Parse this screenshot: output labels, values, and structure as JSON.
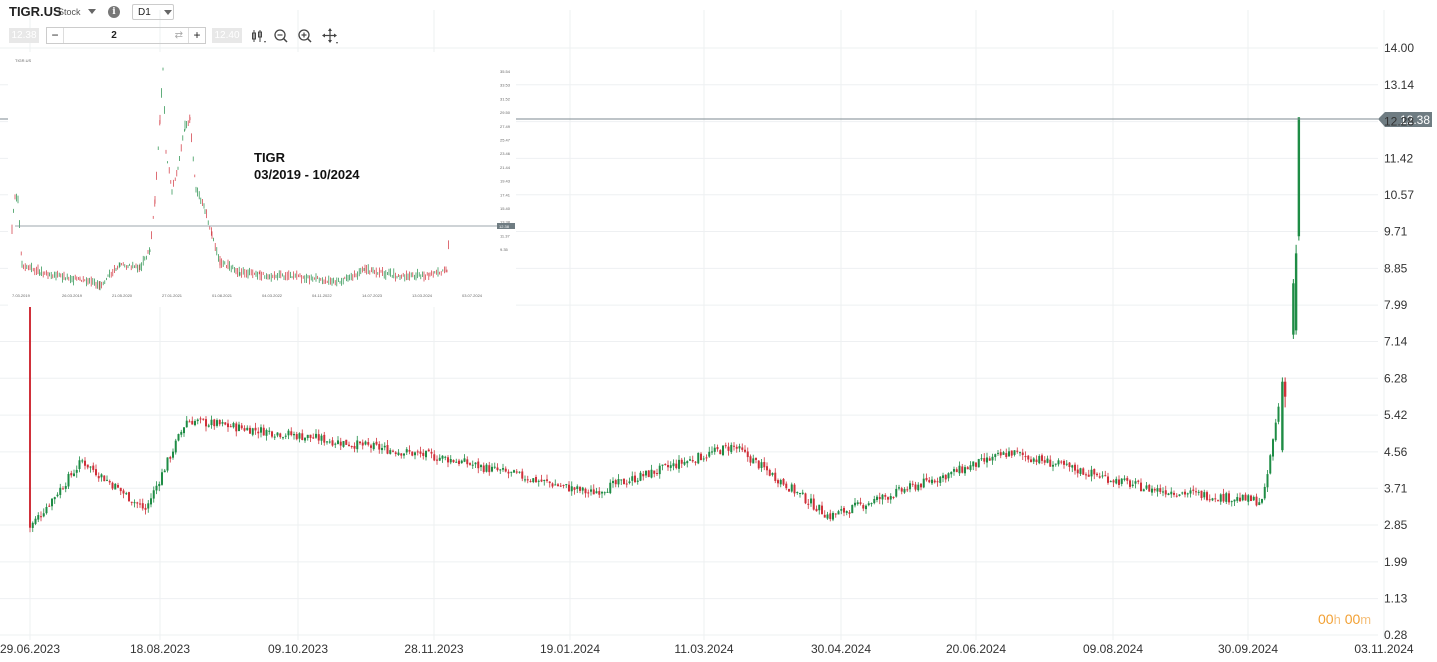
{
  "toolbar": {
    "symbol": "TIGR.US",
    "type": "Stock",
    "timeframe": "D1",
    "bid": "12.38",
    "ask": "12.40",
    "volume": "2",
    "minus": "−",
    "plus": "+",
    "swap": "⇄",
    "info": "i",
    "tools": [
      "candles-icon",
      "zoom-out-icon",
      "zoom-in-icon",
      "crosshair-icon"
    ]
  },
  "countdown": {
    "hours": "00",
    "h": "h",
    "minutes": "00",
    "m": "m"
  },
  "inset": {
    "title": "TIGR",
    "period": "03/2019 - 10/2024",
    "header": "TIGR.US",
    "x_labels": [
      "7.03.2019",
      "26.03.2019",
      "21.05.2020",
      "27.01.2021",
      "01.08.2021",
      "04.03.2022",
      "04.11.2022",
      "14.07.2023",
      "13.03.2024",
      "03.07.2024"
    ],
    "y_labels": [
      "35.54",
      "33.53",
      "31.52",
      "29.50",
      "27.49",
      "25.47",
      "23.46",
      "21.44",
      "19.43",
      "17.41",
      "15.40",
      "13.38",
      "11.37",
      "9.35"
    ],
    "price_label": "12.38"
  },
  "chart_data": {
    "type": "candlestick",
    "y_ticks": [
      14.0,
      13.14,
      12.28,
      11.42,
      10.57,
      9.71,
      8.85,
      7.99,
      7.14,
      6.28,
      5.42,
      4.56,
      3.71,
      2.85,
      1.99,
      1.13,
      0.28
    ],
    "y_labels": [
      "14.00",
      "13.14",
      "12.28",
      "11.42",
      "10.57",
      "9.71",
      "8.85",
      "7.99",
      "7.14",
      "6.28",
      "5.42",
      "4.56",
      "3.71",
      "2.85",
      "1.99",
      "1.13",
      "0.28"
    ],
    "x_labels": [
      "29.06.2023",
      "18.08.2023",
      "09.10.2023",
      "28.11.2023",
      "19.01.2024",
      "11.03.2024",
      "30.04.2024",
      "20.06.2024",
      "09.08.2024",
      "30.09.2024",
      "03.11.2024"
    ],
    "current_price": 12.38,
    "current_price_label": "12.38",
    "up_color": "#1e8c45",
    "down_color": "#d0303a",
    "key_closes": [
      {
        "date": "29.06.2023",
        "close": 2.8
      },
      {
        "date": "18.07.2023",
        "close": 4.35
      },
      {
        "date": "10.08.2023",
        "close": 3.2
      },
      {
        "date": "25.08.2023",
        "close": 5.3
      },
      {
        "date": "09.10.2023",
        "close": 4.9
      },
      {
        "date": "28.11.2023",
        "close": 4.4
      },
      {
        "date": "19.01.2024",
        "close": 3.6
      },
      {
        "date": "11.03.2024",
        "close": 4.7
      },
      {
        "date": "15.04.2024",
        "close": 3.05
      },
      {
        "date": "20.06.2024",
        "close": 4.55
      },
      {
        "date": "09.08.2024",
        "close": 3.7
      },
      {
        "date": "20.09.2024",
        "close": 3.4
      },
      {
        "date": "27.09.2024",
        "close": 6.2
      },
      {
        "date": "02.10.2024",
        "close": 8.0
      },
      {
        "date": "03.10.2024",
        "close": 12.38
      }
    ]
  }
}
